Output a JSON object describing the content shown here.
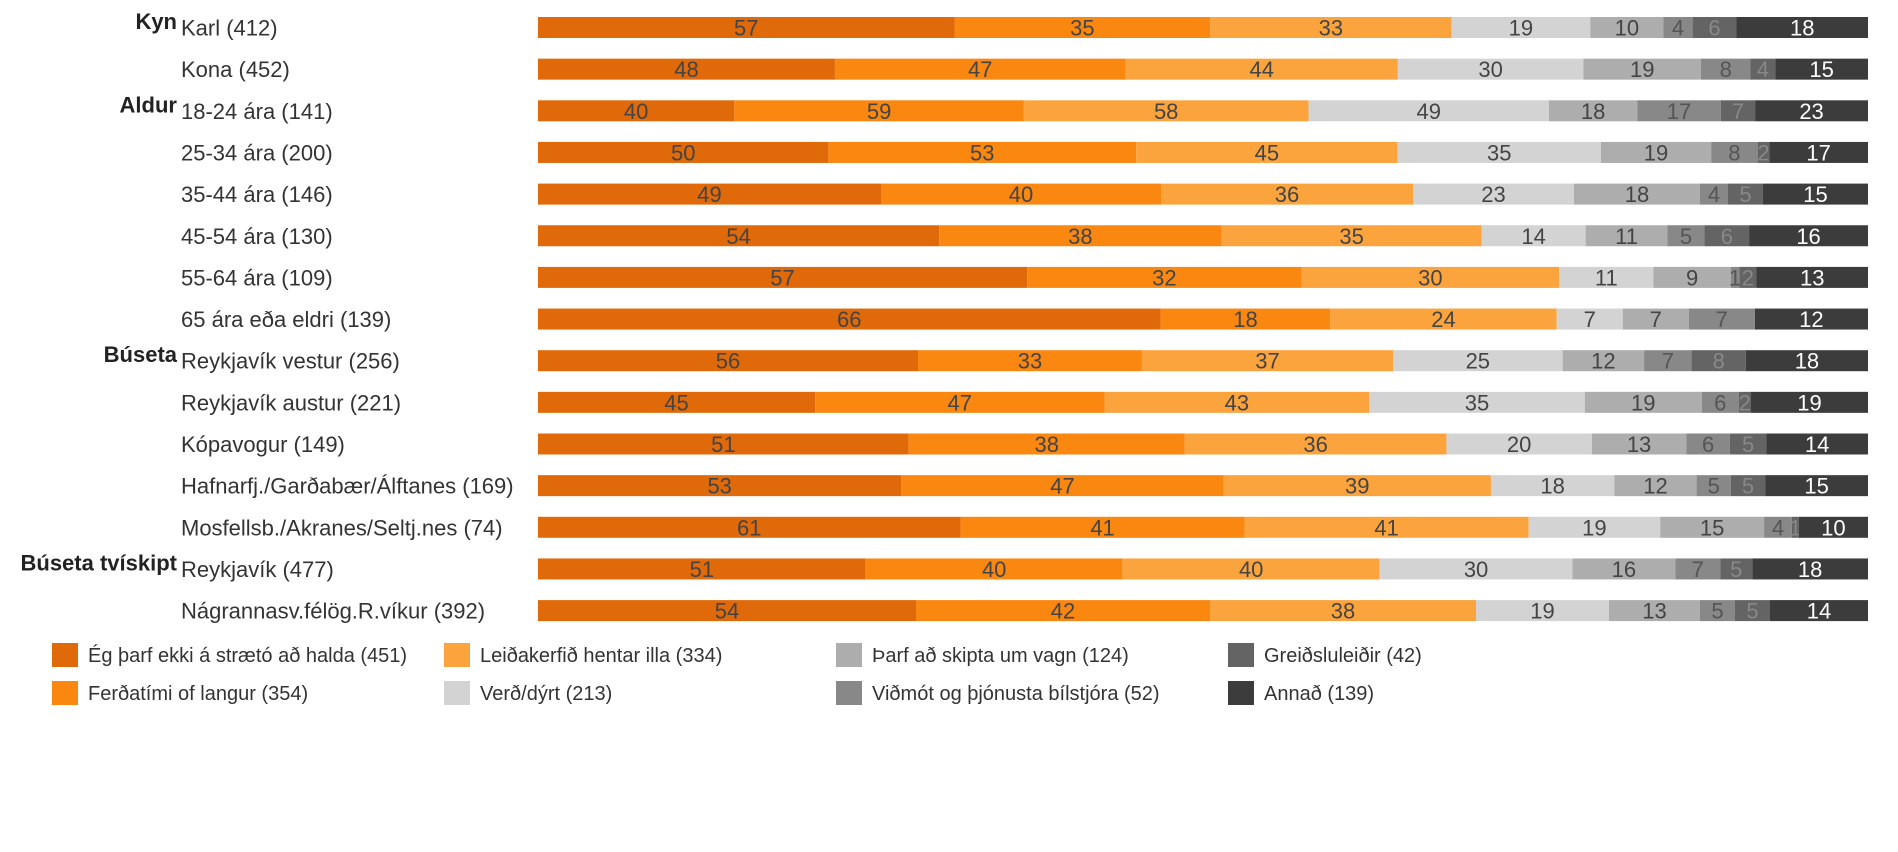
{
  "chart_data": {
    "type": "bar",
    "orientation": "horizontal",
    "stacked": true,
    "normalized": true,
    "grid": false,
    "legend_position": "bottom",
    "groups": [
      {
        "label": "Kyn",
        "first_row": 0
      },
      {
        "label": "Aldur",
        "first_row": 2
      },
      {
        "label": "Búseta",
        "first_row": 8
      },
      {
        "label": "Búseta tvískipt",
        "first_row": 13
      }
    ],
    "categories": [
      "Karl  (412)",
      "Kona  (452)",
      "18-24 ára  (141)",
      "25-34 ára  (200)",
      "35-44 ára  (146)",
      "45-54 ára  (130)",
      "55-64 ára  (109)",
      "65 ára eða eldri  (139)",
      "Reykjavík vestur (256)",
      "Reykjavík austur (221)",
      "Kópavogur (149)",
      "Hafnarfj./Garðabær/Álftanes (169)",
      "Mosfellsb./Akranes/Seltj.nes (74)",
      "Reykjavík (477)",
      "Nágrannasv.félög.R.víkur (392)"
    ],
    "series": [
      {
        "name": "Ég þarf ekki á strætó að halda  (451)",
        "color": "#E0690A",
        "label_color": "#444444",
        "values": [
          57,
          48,
          40,
          50,
          49,
          54,
          57,
          66,
          56,
          45,
          51,
          53,
          61,
          51,
          54
        ]
      },
      {
        "name": "Ferðatími of langur (354)",
        "color": "#F98710",
        "label_color": "#444444",
        "values": [
          35,
          47,
          59,
          53,
          40,
          38,
          32,
          18,
          33,
          47,
          38,
          47,
          41,
          40,
          42
        ]
      },
      {
        "name": "Leiðakerfið hentar illa (334)",
        "color": "#FBA43D",
        "label_color": "#444444",
        "values": [
          33,
          44,
          58,
          45,
          36,
          35,
          30,
          24,
          37,
          43,
          36,
          39,
          41,
          40,
          38
        ]
      },
      {
        "name": "Verð/dýrt (213)",
        "color": "#D3D3D3",
        "label_color": "#444444",
        "values": [
          19,
          30,
          49,
          35,
          23,
          14,
          11,
          7,
          25,
          35,
          20,
          18,
          19,
          30,
          19
        ]
      },
      {
        "name": "Þarf að skipta um vagn (124)",
        "color": "#ADADAD",
        "label_color": "#444444",
        "values": [
          10,
          19,
          18,
          19,
          18,
          11,
          9,
          7,
          12,
          19,
          13,
          12,
          15,
          16,
          13
        ]
      },
      {
        "name": "Viðmót og þjónusta bílstjóra (52)",
        "color": "#888888",
        "label_color": "#555555",
        "values": [
          4,
          8,
          17,
          8,
          4,
          5,
          1,
          7,
          7,
          6,
          6,
          5,
          4,
          7,
          5
        ]
      },
      {
        "name": "Greiðsluleiðir (42)",
        "color": "#646464",
        "label_color": "#888888",
        "values": [
          6,
          4,
          7,
          2,
          5,
          6,
          2,
          0,
          8,
          2,
          5,
          5,
          1,
          5,
          5
        ]
      },
      {
        "name": "Annað (139)",
        "color": "#3C3C3C",
        "label_color": "#FFFFFF",
        "values": [
          18,
          15,
          23,
          17,
          15,
          16,
          13,
          12,
          18,
          19,
          14,
          15,
          10,
          18,
          14
        ]
      }
    ],
    "legend_order": [
      0,
      2,
      4,
      6,
      1,
      3,
      5,
      7
    ]
  }
}
